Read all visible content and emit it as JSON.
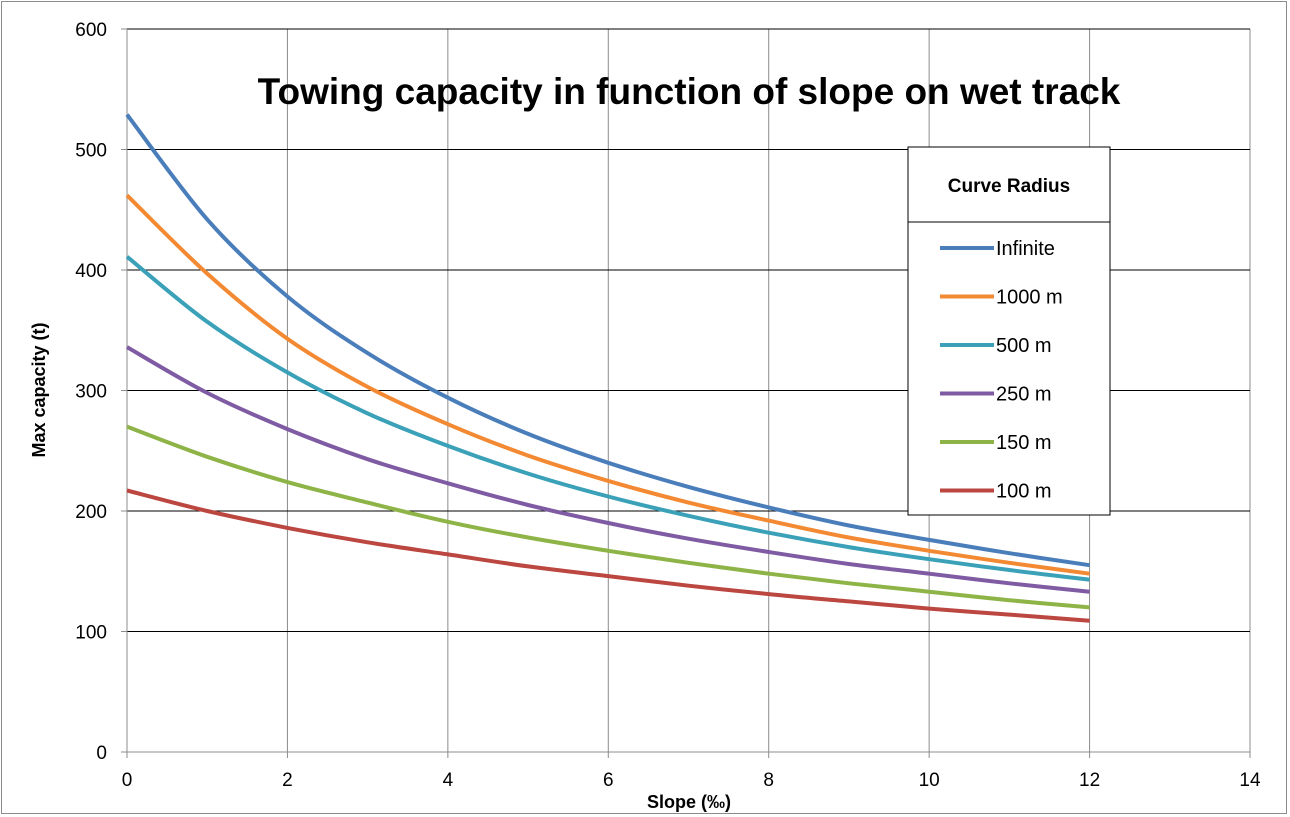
{
  "chart_data": {
    "type": "line",
    "title": "Towing capacity in function of slope on wet track",
    "xlabel": "Slope (‰)",
    "ylabel": "Max capacity (t)",
    "xlim": [
      0,
      14
    ],
    "ylim": [
      0,
      600
    ],
    "xticks": [
      "0",
      "2",
      "4",
      "6",
      "8",
      "10",
      "12",
      "14"
    ],
    "yticks": [
      "0",
      "100",
      "200",
      "300",
      "400",
      "500",
      "600"
    ],
    "grid": true,
    "legend": {
      "title": "Curve Radius",
      "position": "right"
    },
    "x": [
      0,
      1,
      2,
      3,
      4,
      5,
      6,
      7,
      8,
      9,
      10,
      11,
      12
    ],
    "series": [
      {
        "name": "Infinite",
        "color": "#4a7ebb",
        "values": [
          529,
          442,
          378,
          331,
          294,
          264,
          240,
          220,
          203,
          188,
          176,
          165,
          155
        ]
      },
      {
        "name": "1000 m",
        "color": "#f38a33",
        "values": [
          462,
          397,
          343,
          303,
          272,
          246,
          225,
          207,
          192,
          178,
          167,
          157,
          148
        ]
      },
      {
        "name": "500 m",
        "color": "#3aa1b8",
        "values": [
          411,
          357,
          315,
          281,
          254,
          231,
          212,
          196,
          182,
          170,
          160,
          151,
          143
        ]
      },
      {
        "name": "250 m",
        "color": "#7f5ba3",
        "values": [
          336,
          298,
          268,
          243,
          223,
          205,
          190,
          177,
          166,
          156,
          148,
          140,
          133
        ]
      },
      {
        "name": "150 m",
        "color": "#8eb447",
        "values": [
          270,
          245,
          224,
          207,
          191,
          178,
          167,
          157,
          148,
          140,
          133,
          126,
          120
        ]
      },
      {
        "name": "100 m",
        "color": "#bb4740",
        "values": [
          217,
          200,
          186,
          174,
          164,
          154,
          146,
          138,
          131,
          125,
          119,
          114,
          109
        ]
      }
    ]
  }
}
